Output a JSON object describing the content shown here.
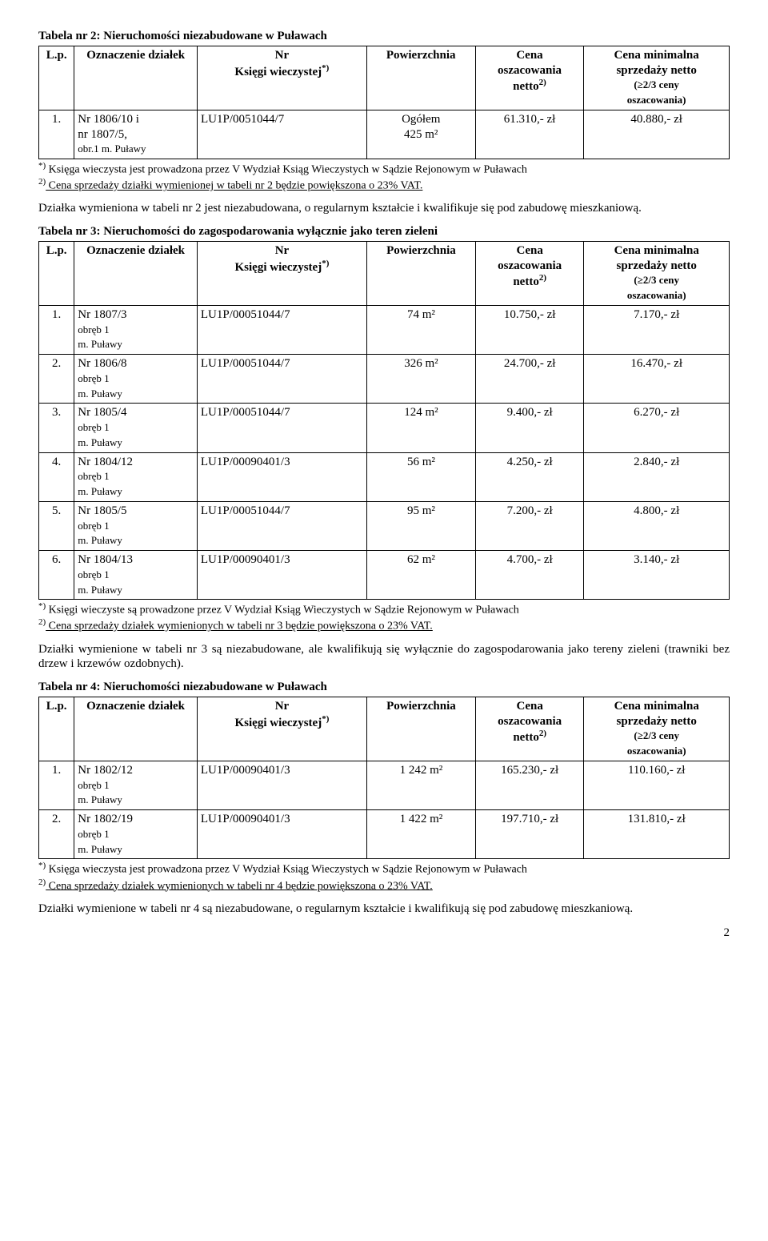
{
  "table2": {
    "title": "Tabela nr 2: Nieruchomości niezabudowane w Puławach",
    "headers": {
      "lp": "L.p.",
      "ozn": "Oznaczenie działek",
      "kw_line1": "Nr",
      "kw_line2": "Księgi wieczystej",
      "kw_sup": "*)",
      "pow": "Powierzchnia",
      "cena_line1": "Cena",
      "cena_line2": "oszacowania",
      "cena_line3": "netto",
      "cena_sup": "2)",
      "min_line1": "Cena minimalna",
      "min_line2": "sprzedaży netto",
      "min_line3": "(≥2/3 ceny",
      "min_line4": "oszacowania)"
    },
    "rows": [
      {
        "lp": "1.",
        "ozn_line1": "Nr 1806/10 i",
        "ozn_line2": "nr 1807/5,",
        "ozn_line3": "obr.1 m. Puławy",
        "kw": "LU1P/0051044/7",
        "pow_line1": "Ogółem",
        "pow_line2": "425 m²",
        "cena": "61.310,- zł",
        "min": "40.880,- zł"
      }
    ],
    "footnote1_sup": "*)",
    "footnote1": " Księga wieczysta jest prowadzona przez V Wydział Ksiąg Wieczystych w Sądzie Rejonowym w Puławach",
    "footnote2_sup": "2)",
    "footnote2": " Cena sprzedaży działki wymienionej w tabeli nr 2 będzie powiększona o 23% VAT.",
    "after_para": "Działka wymieniona w tabeli nr 2 jest niezabudowana, o regularnym kształcie i kwalifikuje się pod zabudowę mieszkaniową."
  },
  "table3": {
    "title": "Tabela nr 3: Nieruchomości do zagospodarowania wyłącznie jako teren zieleni",
    "headers": {
      "lp": "L.p.",
      "ozn": "Oznaczenie działek",
      "kw_line1": "Nr",
      "kw_line2": "Księgi wieczystej",
      "kw_sup": "*)",
      "pow": "Powierzchnia",
      "cena_line1": "Cena",
      "cena_line2": "oszacowania",
      "cena_line3": "netto",
      "cena_sup": "2)",
      "min_line1": "Cena minimalna",
      "min_line2": "sprzedaży netto",
      "min_line3": "(≥2/3 ceny",
      "min_line4": "oszacowania)"
    },
    "rows": [
      {
        "lp": "1.",
        "ozn_line1": "Nr 1807/3",
        "ozn_line2": "obręb 1",
        "ozn_line3": "m. Puławy",
        "kw": "LU1P/00051044/7",
        "pow": "74 m²",
        "cena": "10.750,- zł",
        "min": "7.170,- zł"
      },
      {
        "lp": "2.",
        "ozn_line1": "Nr 1806/8",
        "ozn_line2": "obręb 1",
        "ozn_line3": "m. Puławy",
        "kw": "LU1P/00051044/7",
        "pow": "326 m²",
        "cena": "24.700,- zł",
        "min": "16.470,- zł"
      },
      {
        "lp": "3.",
        "ozn_line1": "Nr 1805/4",
        "ozn_line2": "obręb 1",
        "ozn_line3": "m. Puławy",
        "kw": "LU1P/00051044/7",
        "pow": "124 m²",
        "cena": "9.400,- zł",
        "min": "6.270,- zł"
      },
      {
        "lp": "4.",
        "ozn_line1": "Nr 1804/12",
        "ozn_line2": "obręb 1",
        "ozn_line3": "m. Puławy",
        "kw": "LU1P/00090401/3",
        "pow": "56 m²",
        "cena": "4.250,- zł",
        "min": "2.840,- zł"
      },
      {
        "lp": "5.",
        "ozn_line1": "Nr 1805/5",
        "ozn_line2": "obręb 1",
        "ozn_line3": "m. Puławy",
        "kw": "LU1P/00051044/7",
        "pow": "95 m²",
        "cena": "7.200,- zł",
        "min": "4.800,- zł"
      },
      {
        "lp": "6.",
        "ozn_line1": "Nr 1804/13",
        "ozn_line2": "obręb 1",
        "ozn_line3": "m. Puławy",
        "kw": "LU1P/00090401/3",
        "pow": "62 m²",
        "cena": "4.700,- zł",
        "min": "3.140,- zł"
      }
    ],
    "footnote1_sup": "*)",
    "footnote1": " Księgi wieczyste są prowadzone przez V Wydział Ksiąg Wieczystych w Sądzie Rejonowym w Puławach",
    "footnote2_sup": "2)",
    "footnote2": " Cena sprzedaży działek wymienionych w tabeli nr 3 będzie powiększona o 23% VAT.",
    "after_para": "Działki wymienione w tabeli nr 3 są niezabudowane, ale kwalifikują się wyłącznie do zagospodarowania jako tereny zieleni (trawniki bez drzew i krzewów ozdobnych)."
  },
  "table4": {
    "title": "Tabela nr 4: Nieruchomości niezabudowane w Puławach",
    "headers": {
      "lp": "L.p.",
      "ozn": "Oznaczenie działek",
      "kw_line1": "Nr",
      "kw_line2": "Księgi wieczystej",
      "kw_sup": "*)",
      "pow": "Powierzchnia",
      "cena_line1": "Cena",
      "cena_line2": "oszacowania",
      "cena_line3": "netto",
      "cena_sup": "2)",
      "min_line1": "Cena minimalna",
      "min_line2": "sprzedaży netto",
      "min_line3": "(≥2/3 ceny",
      "min_line4": "oszacowania)"
    },
    "rows": [
      {
        "lp": "1.",
        "ozn_line1": "Nr 1802/12",
        "ozn_line2": "obręb 1",
        "ozn_line3": "m. Puławy",
        "kw": "LU1P/00090401/3",
        "pow": "1 242 m²",
        "cena": "165.230,- zł",
        "min": "110.160,- zł"
      },
      {
        "lp": "2.",
        "ozn_line1": "Nr 1802/19",
        "ozn_line2": "obręb 1",
        "ozn_line3": "m. Puławy",
        "kw": "LU1P/00090401/3",
        "pow": "1 422 m²",
        "cena": "197.710,- zł",
        "min": "131.810,- zł"
      }
    ],
    "footnote1_sup": "*)",
    "footnote1": " Księga wieczysta jest prowadzona przez V Wydział Ksiąg Wieczystych w Sądzie Rejonowym w Puławach",
    "footnote2_sup": "2)",
    "footnote2": " Cena sprzedaży działek wymienionych w tabeli nr 4 będzie powiększona o 23% VAT.",
    "after_para": "Działki wymienione w tabeli nr 4 są niezabudowane, o regularnym kształcie i kwalifikują się pod zabudowę mieszkaniową."
  },
  "page_number": "2"
}
